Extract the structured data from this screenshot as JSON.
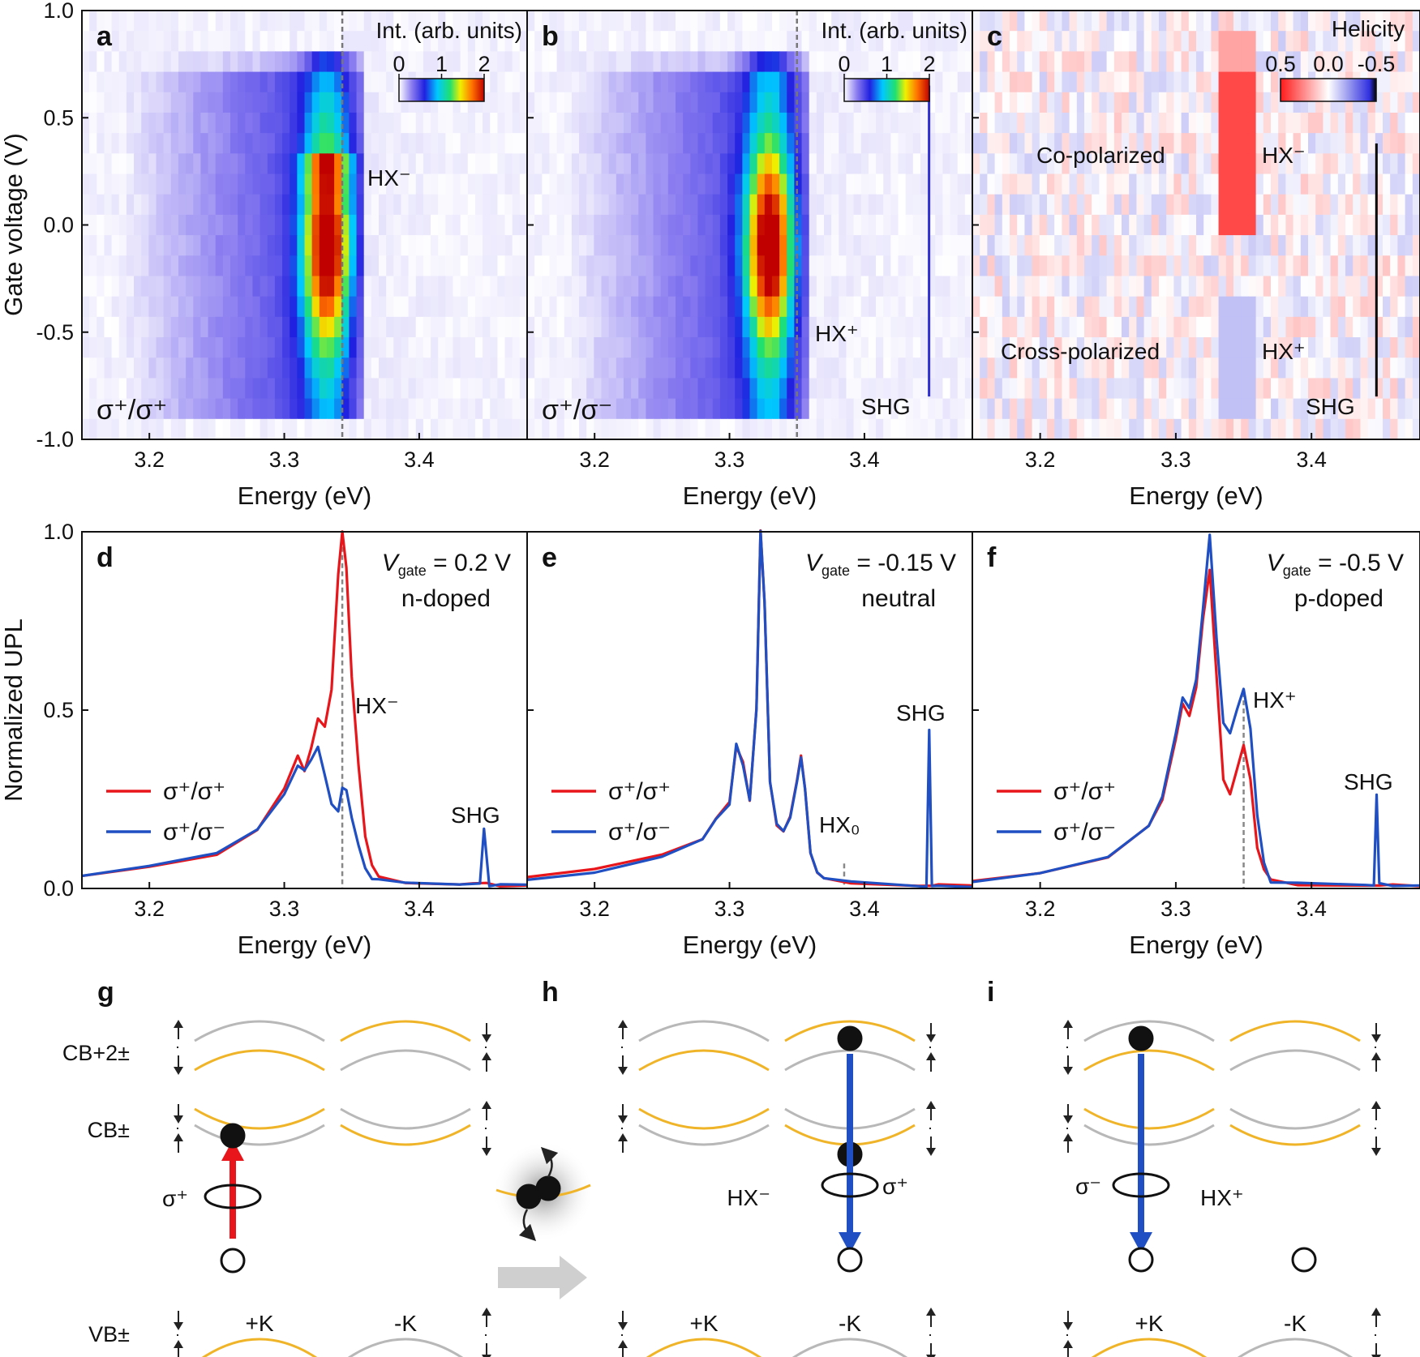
{
  "colors": {
    "red": "#e8161b",
    "blue": "#1f4fc2",
    "gold": "#f0b429",
    "gray": "#b8b8b8"
  },
  "heatmaps": {
    "ylabel": "Gate voltage (V)",
    "xlabel": "Energy (eV)",
    "xticks": [
      "3.2",
      "3.3",
      "3.4"
    ],
    "yticks": [
      "1.0",
      "0.5",
      "0.0",
      "-0.5",
      "-1.0"
    ],
    "colorbar_title": "Int. (arb. units)",
    "colorbar_ticks": [
      "0",
      "1",
      "2"
    ],
    "panels": [
      {
        "letter": "a",
        "pol": "σ⁺/σ⁺",
        "labels": [
          "HX⁻"
        ]
      },
      {
        "letter": "b",
        "pol": "σ⁺/σ⁻",
        "labels": [
          "HX⁺",
          "SHG"
        ]
      },
      {
        "letter": "c",
        "title": "Helicity",
        "ticks": [
          "0.5",
          "0.0",
          "-0.5"
        ],
        "labels": [
          "Co-polarized",
          "HX⁻",
          "Cross-polarized",
          "HX⁺",
          "SHG"
        ]
      }
    ]
  },
  "spectra": {
    "ylabel": "Normalized UPL",
    "xlabel": "Energy (eV)",
    "xticks": [
      "3.2",
      "3.3",
      "3.4"
    ],
    "yticks": [
      "1.0",
      "0.5",
      "0.0"
    ],
    "legend": [
      "σ⁺/σ⁺",
      "σ⁺/σ⁻"
    ],
    "panels": [
      {
        "letter": "d",
        "vgate": "V",
        "sub": "gate",
        "eq": " = 0.2 V",
        "state": "n-doped",
        "peak_label": "HX⁻",
        "shg": "SHG"
      },
      {
        "letter": "e",
        "vgate": "V",
        "sub": "gate",
        "eq": " = -0.15 V",
        "state": "neutral",
        "peak_label": "HX₀",
        "shg": "SHG"
      },
      {
        "letter": "f",
        "vgate": "V",
        "sub": "gate",
        "eq": " = -0.5 V",
        "state": "p-doped",
        "peak_label": "HX⁺",
        "shg": "SHG"
      }
    ]
  },
  "chart_data": [
    {
      "type": "heatmap",
      "panel": "a",
      "title": "σ+/σ+",
      "xlabel": "Energy (eV)",
      "ylabel": "Gate voltage (V)",
      "xlim": [
        3.15,
        3.48
      ],
      "ylim": [
        -1.0,
        1.0
      ],
      "colorbar": {
        "label": "Int. (arb. units)",
        "range": [
          0,
          2
        ]
      },
      "features": [
        {
          "label": "HX-",
          "energy": 3.343,
          "gate": 0.2
        }
      ]
    },
    {
      "type": "heatmap",
      "panel": "b",
      "title": "σ+/σ-",
      "xlabel": "Energy (eV)",
      "ylabel": "Gate voltage (V)",
      "xlim": [
        3.15,
        3.48
      ],
      "ylim": [
        -1.0,
        1.0
      ],
      "colorbar": {
        "label": "Int. (arb. units)",
        "range": [
          0,
          2
        ]
      },
      "features": [
        {
          "label": "HX+",
          "energy": 3.35,
          "gate": -0.5
        },
        {
          "label": "SHG",
          "energy": 3.448
        }
      ]
    },
    {
      "type": "heatmap",
      "panel": "c",
      "title": "Helicity",
      "xlabel": "Energy (eV)",
      "ylabel": "Gate voltage (V)",
      "xlim": [
        3.15,
        3.48
      ],
      "ylim": [
        -1.0,
        1.0
      ],
      "colorbar": {
        "label": "Helicity",
        "range": [
          0.5,
          -0.5
        ]
      },
      "features": [
        {
          "label": "Co-polarized",
          "gate": 0.3
        },
        {
          "label": "Cross-polarized",
          "gate": -0.6
        }
      ]
    },
    {
      "type": "line",
      "panel": "d",
      "xlabel": "Energy (eV)",
      "ylabel": "Normalized UPL",
      "xlim": [
        3.15,
        3.48
      ],
      "ylim": [
        0,
        1.0
      ],
      "vline": 3.343,
      "series": [
        {
          "name": "σ+/σ+",
          "color": "#e8161b",
          "x": [
            3.15,
            3.2,
            3.25,
            3.28,
            3.3,
            3.31,
            3.315,
            3.32,
            3.325,
            3.33,
            3.335,
            3.34,
            3.343,
            3.346,
            3.35,
            3.355,
            3.36,
            3.365,
            3.37,
            3.39,
            3.43,
            3.44,
            3.45,
            3.46,
            3.48
          ],
          "y": [
            0.04,
            0.06,
            0.1,
            0.17,
            0.28,
            0.37,
            0.33,
            0.39,
            0.48,
            0.45,
            0.56,
            0.88,
            1.0,
            0.9,
            0.6,
            0.35,
            0.15,
            0.06,
            0.03,
            0.015,
            0.01,
            0.01,
            0.01,
            0.01,
            0.01
          ]
        },
        {
          "name": "σ+/σ-",
          "color": "#1f4fc2",
          "x": [
            3.15,
            3.2,
            3.25,
            3.28,
            3.3,
            3.31,
            3.315,
            3.32,
            3.325,
            3.33,
            3.335,
            3.34,
            3.343,
            3.346,
            3.35,
            3.355,
            3.36,
            3.365,
            3.37,
            3.39,
            3.43,
            3.445,
            3.448,
            3.452,
            3.46,
            3.48
          ],
          "y": [
            0.04,
            0.06,
            0.1,
            0.16,
            0.27,
            0.34,
            0.33,
            0.36,
            0.4,
            0.32,
            0.24,
            0.22,
            0.28,
            0.27,
            0.2,
            0.12,
            0.06,
            0.03,
            0.02,
            0.015,
            0.01,
            0.01,
            0.17,
            0.01,
            0.01,
            0.01
          ]
        }
      ],
      "labels": [
        {
          "text": "HX-",
          "x": 3.343
        },
        {
          "text": "SHG",
          "x": 3.448
        }
      ]
    },
    {
      "type": "line",
      "panel": "e",
      "xlabel": "Energy (eV)",
      "ylabel": "Normalized UPL",
      "xlim": [
        3.15,
        3.48
      ],
      "ylim": [
        0,
        1.0
      ],
      "vline": 3.385,
      "series": [
        {
          "name": "σ+/σ+",
          "color": "#e8161b",
          "x": [
            3.15,
            3.2,
            3.25,
            3.28,
            3.29,
            3.3,
            3.305,
            3.31,
            3.315,
            3.32,
            3.323,
            3.326,
            3.33,
            3.335,
            3.34,
            3.345,
            3.35,
            3.353,
            3.356,
            3.36,
            3.365,
            3.37,
            3.39,
            3.44,
            3.45,
            3.455,
            3.48
          ],
          "y": [
            0.03,
            0.05,
            0.09,
            0.14,
            0.19,
            0.24,
            0.4,
            0.35,
            0.25,
            0.5,
            1.0,
            0.8,
            0.3,
            0.18,
            0.16,
            0.2,
            0.3,
            0.37,
            0.28,
            0.1,
            0.05,
            0.03,
            0.02,
            0.01,
            0.01,
            0.01,
            0.01
          ]
        },
        {
          "name": "σ+/σ-",
          "color": "#1f4fc2",
          "x": [
            3.15,
            3.2,
            3.25,
            3.28,
            3.29,
            3.3,
            3.305,
            3.31,
            3.315,
            3.32,
            3.323,
            3.326,
            3.33,
            3.335,
            3.34,
            3.345,
            3.35,
            3.353,
            3.356,
            3.36,
            3.365,
            3.37,
            3.39,
            3.44,
            3.446,
            3.448,
            3.45,
            3.455,
            3.48
          ],
          "y": [
            0.03,
            0.05,
            0.09,
            0.14,
            0.19,
            0.24,
            0.41,
            0.35,
            0.25,
            0.5,
            1.0,
            0.8,
            0.3,
            0.18,
            0.16,
            0.2,
            0.3,
            0.37,
            0.28,
            0.1,
            0.05,
            0.03,
            0.02,
            0.01,
            0.01,
            0.44,
            0.01,
            0.01,
            0.01
          ]
        }
      ],
      "labels": [
        {
          "text": "HX0",
          "x": 3.385
        },
        {
          "text": "SHG",
          "x": 3.448
        }
      ]
    },
    {
      "type": "line",
      "panel": "f",
      "xlabel": "Energy (eV)",
      "ylabel": "Normalized UPL",
      "xlim": [
        3.15,
        3.48
      ],
      "ylim": [
        0,
        1.0
      ],
      "vline": 3.35,
      "series": [
        {
          "name": "σ+/σ+",
          "color": "#e8161b",
          "x": [
            3.15,
            3.2,
            3.25,
            3.28,
            3.29,
            3.3,
            3.305,
            3.31,
            3.315,
            3.32,
            3.325,
            3.33,
            3.335,
            3.34,
            3.345,
            3.35,
            3.355,
            3.36,
            3.365,
            3.37,
            3.39,
            3.44,
            3.45,
            3.46,
            3.48
          ],
          "y": [
            0.02,
            0.04,
            0.09,
            0.17,
            0.25,
            0.42,
            0.52,
            0.48,
            0.56,
            0.75,
            0.89,
            0.6,
            0.3,
            0.27,
            0.33,
            0.4,
            0.3,
            0.12,
            0.05,
            0.02,
            0.01,
            0.01,
            0.01,
            0.01,
            0.01
          ]
        },
        {
          "name": "σ+/σ-",
          "color": "#1f4fc2",
          "x": [
            3.15,
            3.2,
            3.25,
            3.28,
            3.29,
            3.3,
            3.305,
            3.31,
            3.315,
            3.32,
            3.325,
            3.33,
            3.335,
            3.34,
            3.345,
            3.35,
            3.355,
            3.36,
            3.365,
            3.37,
            3.39,
            3.44,
            3.446,
            3.448,
            3.45,
            3.46,
            3.48
          ],
          "y": [
            0.02,
            0.04,
            0.09,
            0.17,
            0.26,
            0.44,
            0.54,
            0.5,
            0.58,
            0.78,
            0.99,
            0.7,
            0.47,
            0.44,
            0.5,
            0.56,
            0.45,
            0.2,
            0.07,
            0.02,
            0.01,
            0.01,
            0.01,
            0.26,
            0.01,
            0.01,
            0.01
          ]
        }
      ],
      "labels": [
        {
          "text": "HX+",
          "x": 3.35
        },
        {
          "text": "SHG",
          "x": 3.448
        }
      ]
    }
  ],
  "diagrams": {
    "panels": [
      {
        "letter": "g"
      },
      {
        "letter": "h"
      },
      {
        "letter": "i"
      }
    ],
    "band_labels": [
      "CB+2±",
      "CB±",
      "VB±"
    ],
    "valley_labels": [
      "+K",
      "-K"
    ],
    "sigma_plus": "σ⁺",
    "sigma_minus": "σ⁻",
    "hx_minus": "HX⁻",
    "hx_plus": "HX⁺"
  }
}
